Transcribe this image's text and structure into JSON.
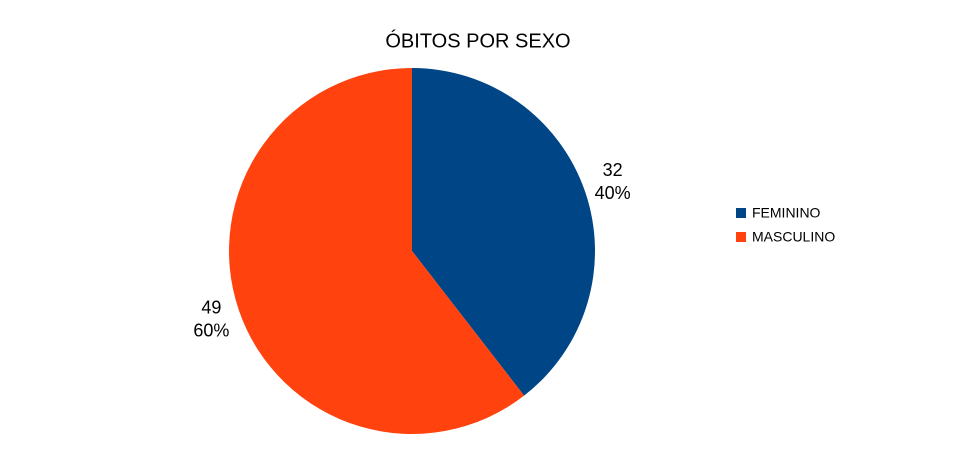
{
  "chart_data": {
    "type": "pie",
    "title": "ÓBITOS POR SEXO",
    "categories": [
      "FEMININO",
      "MASCULINO"
    ],
    "values": [
      32,
      49
    ],
    "percent_labels": [
      "40%",
      "60%"
    ],
    "colors": [
      "#004586",
      "#ff420e"
    ],
    "legend": "right"
  }
}
